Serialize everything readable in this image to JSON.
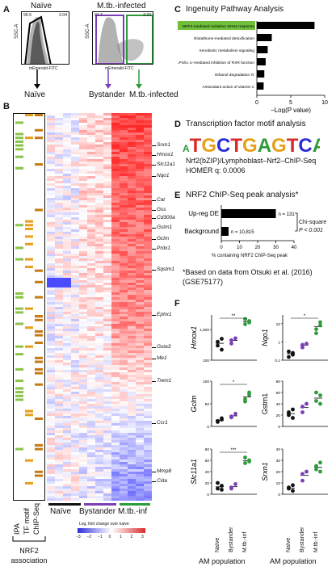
{
  "panelA": {
    "label": "A",
    "naive_title": "Naïve",
    "infected_title": "M.tb.-infected",
    "y_axis": "SSC-A",
    "x_axis": "mEmerald-FITC",
    "naive_pct_left": "99.9",
    "naive_pct_right": "0.04",
    "inf_pct_left": "97.7",
    "inf_pct_right": "2.22",
    "gate_naive": "Naïve",
    "gate_bystander": "Bystander",
    "gate_infected": "M.tb.-infected",
    "colors": {
      "bystander": "#7b3fb5",
      "infected": "#2e9a3a"
    }
  },
  "panelB": {
    "label": "B",
    "assoc_cols": [
      "IPA",
      "TF motif",
      "ChIP-Seq"
    ],
    "assoc_title": "NRF2 association",
    "groups": [
      "Naïve",
      "Bystander",
      "M.tb.-inf"
    ],
    "legend_title": "Log, fold change over naïve",
    "legend_ticks": [
      "−3",
      "−2",
      "−1",
      "0",
      "1",
      "2",
      "3"
    ],
    "genes": [
      "Srxn1",
      "Hmox1",
      "Slc11a1",
      "Nqo1",
      "Cat",
      "Gss",
      "Cd300a",
      "Gstm1",
      "Gclm",
      "Prdx1",
      "Sqstm1",
      "Ephx1",
      "Gsta3",
      "Me1",
      "Trem1",
      "Ccr1",
      "Mmp8",
      "Ciita"
    ],
    "colors": {
      "ipa": "#8bc34a",
      "tf": "#e6a01b",
      "chip": "#c67a12"
    }
  },
  "panelC": {
    "label": "C",
    "title": "Ingenuity Pathway Analysis",
    "xlabel": "−Log(P value)",
    "ticks": [
      "0",
      "5",
      "10"
    ]
  },
  "panelD": {
    "label": "D",
    "title": "Transcription factor motif analysis",
    "motif": "ATGCTGAGTCAT",
    "line1": "Nrf2(bZIP)/Lymphoblast–Nrf2–ChIP-Seq",
    "line2": "HOMER q: 0.0006"
  },
  "panelE": {
    "label": "E",
    "title": "NRF2 ChIP-Seq peak analysis*",
    "xlabel": "% containing NRF2 ChIP-Seq peak",
    "ticks": [
      "0",
      "10",
      "20",
      "30",
      "40"
    ],
    "test": "Chi-square",
    "pval": "P < 0.001",
    "footnote1": "*Based on data from Otsuki et al. (2016)",
    "footnote2": "(GSE75177)"
  },
  "panelF": {
    "label": "F",
    "x_title": "AM population",
    "groups": [
      "Naïve",
      "Bystander",
      "M.tb.-inf"
    ],
    "colors": {
      "naive": "#111111",
      "bystander": "#7b3fb5",
      "infected": "#2e9a3a"
    }
  },
  "chart_data": [
    {
      "type": "bar",
      "title": "Ingenuity Pathway Analysis",
      "xlabel": "−Log(P value)",
      "orientation": "horizontal",
      "xlim": [
        0,
        10
      ],
      "categories": [
        "NRF2-mediated oxidative stress response",
        "Glutathione-mediated detoxification",
        "Xenobiotic metabolism signaling",
        "LPS/IL-1–mediated inhibition of RXR function",
        "Ethanol degradation IV",
        "Antioxidant action of vitamin C"
      ],
      "values": [
        8.5,
        2.2,
        1.6,
        1.3,
        1.1,
        1.0
      ]
    },
    {
      "type": "bar",
      "title": "NRF2 ChIP-Seq peak analysis*",
      "xlabel": "% containing NRF2 ChIP-Seq peak",
      "orientation": "horizontal",
      "xlim": [
        0,
        40
      ],
      "categories": [
        "Up-reg DE",
        "Background"
      ],
      "values": [
        30,
        4
      ],
      "annotations": [
        "n = 131",
        "n = 10,815"
      ]
    },
    {
      "type": "scatter",
      "panels": [
        {
          "gene": "Hmox1",
          "scale": "log",
          "ylim": [
            100,
            3000
          ],
          "ticks": [
            "100",
            "1,000"
          ],
          "sig": "**",
          "values": {
            "Naïve": [
              300,
              500,
              400,
              220
            ],
            "Bystander": [
              350,
              520,
              450
            ],
            "M.tb.-inf": [
              1500,
              1900,
              2200,
              1700
            ]
          }
        },
        {
          "gene": "Nqo1",
          "scale": "log",
          "ylim": [
            0.1,
            30
          ],
          "ticks": [
            "0.1",
            "1",
            "10"
          ],
          "sig": "*",
          "values": {
            "Naïve": [
              0.3,
              0.2,
              0.15,
              0.25
            ],
            "Bystander": [
              0.5,
              0.8,
              0.7
            ],
            "M.tb.-inf": [
              5,
              8,
              3,
              12
            ]
          }
        },
        {
          "gene": "Gclm",
          "scale": "linear",
          "ylim": [
            0,
            100
          ],
          "ticks": [
            "0",
            "50",
            "100"
          ],
          "sig": "*",
          "values": {
            "Naïve": [
              10,
              15,
              12,
              18
            ],
            "Bystander": [
              20,
              28,
              22
            ],
            "M.tb.-inf": [
              55,
              70,
              60,
              75
            ]
          }
        },
        {
          "gene": "Gstm1",
          "scale": "linear",
          "ylim": [
            0,
            80
          ],
          "ticks": [
            "0",
            "20",
            "40",
            "60",
            "80"
          ],
          "sig": "",
          "values": {
            "Naïve": [
              20,
              30,
              25,
              15
            ],
            "Bystander": [
              25,
              40,
              35
            ],
            "M.tb.-inf": [
              45,
              55,
              60,
              40
            ]
          }
        },
        {
          "gene": "Slc11a1",
          "scale": "linear",
          "ylim": [
            0,
            80
          ],
          "ticks": [
            "0",
            "20",
            "40",
            "60",
            "80"
          ],
          "sig": "***",
          "values": {
            "Naïve": [
              10,
              15,
              20,
              8
            ],
            "Bystander": [
              12,
              18,
              10
            ],
            "M.tb.-inf": [
              55,
              60,
              65,
              58
            ]
          }
        },
        {
          "gene": "Srxn1",
          "scale": "linear",
          "ylim": [
            0,
            40
          ],
          "ticks": [
            "0",
            "10",
            "20",
            "30",
            "40"
          ],
          "sig": "",
          "values": {
            "Naïve": [
              6,
              8,
              5,
              3
            ],
            "Bystander": [
              12,
              20,
              18
            ],
            "M.tb.-inf": [
              22,
              28,
              25,
              20
            ]
          }
        }
      ]
    }
  ]
}
